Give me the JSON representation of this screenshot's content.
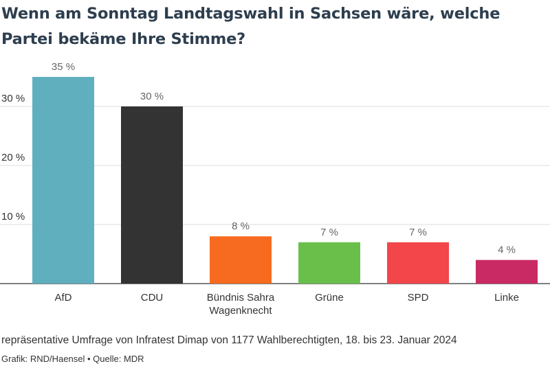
{
  "title": "Wenn am Sonntag Landtagswahl in Sachsen wäre, welche Partei bekäme Ihre Stimme?",
  "chart_data": {
    "type": "bar",
    "categories": [
      "AfD",
      "CDU",
      "Bündnis Sahra Wagenknecht",
      "Grüne",
      "SPD",
      "Linke"
    ],
    "values": [
      35,
      30,
      8,
      7,
      7,
      4
    ],
    "value_labels": [
      "35 %",
      "30 %",
      "8 %",
      "7 %",
      "7 %",
      "4 %"
    ],
    "colors": [
      "#5fafbf",
      "#333333",
      "#f66b1f",
      "#6abf4b",
      "#f2464a",
      "#c92a63"
    ],
    "yticks": [
      10,
      20,
      30
    ],
    "ytick_labels": [
      "10 %",
      "20 %",
      "30 %"
    ],
    "ylim": [
      0,
      35
    ],
    "grid": true,
    "legend": "none"
  },
  "footer": {
    "note": "repräsentative Umfrage von Infratest Dimap von 1177 Wahlberechtigten, 18. bis 23. Januar 2024",
    "credit": "Grafik: RND/Haensel • Quelle: MDR"
  }
}
